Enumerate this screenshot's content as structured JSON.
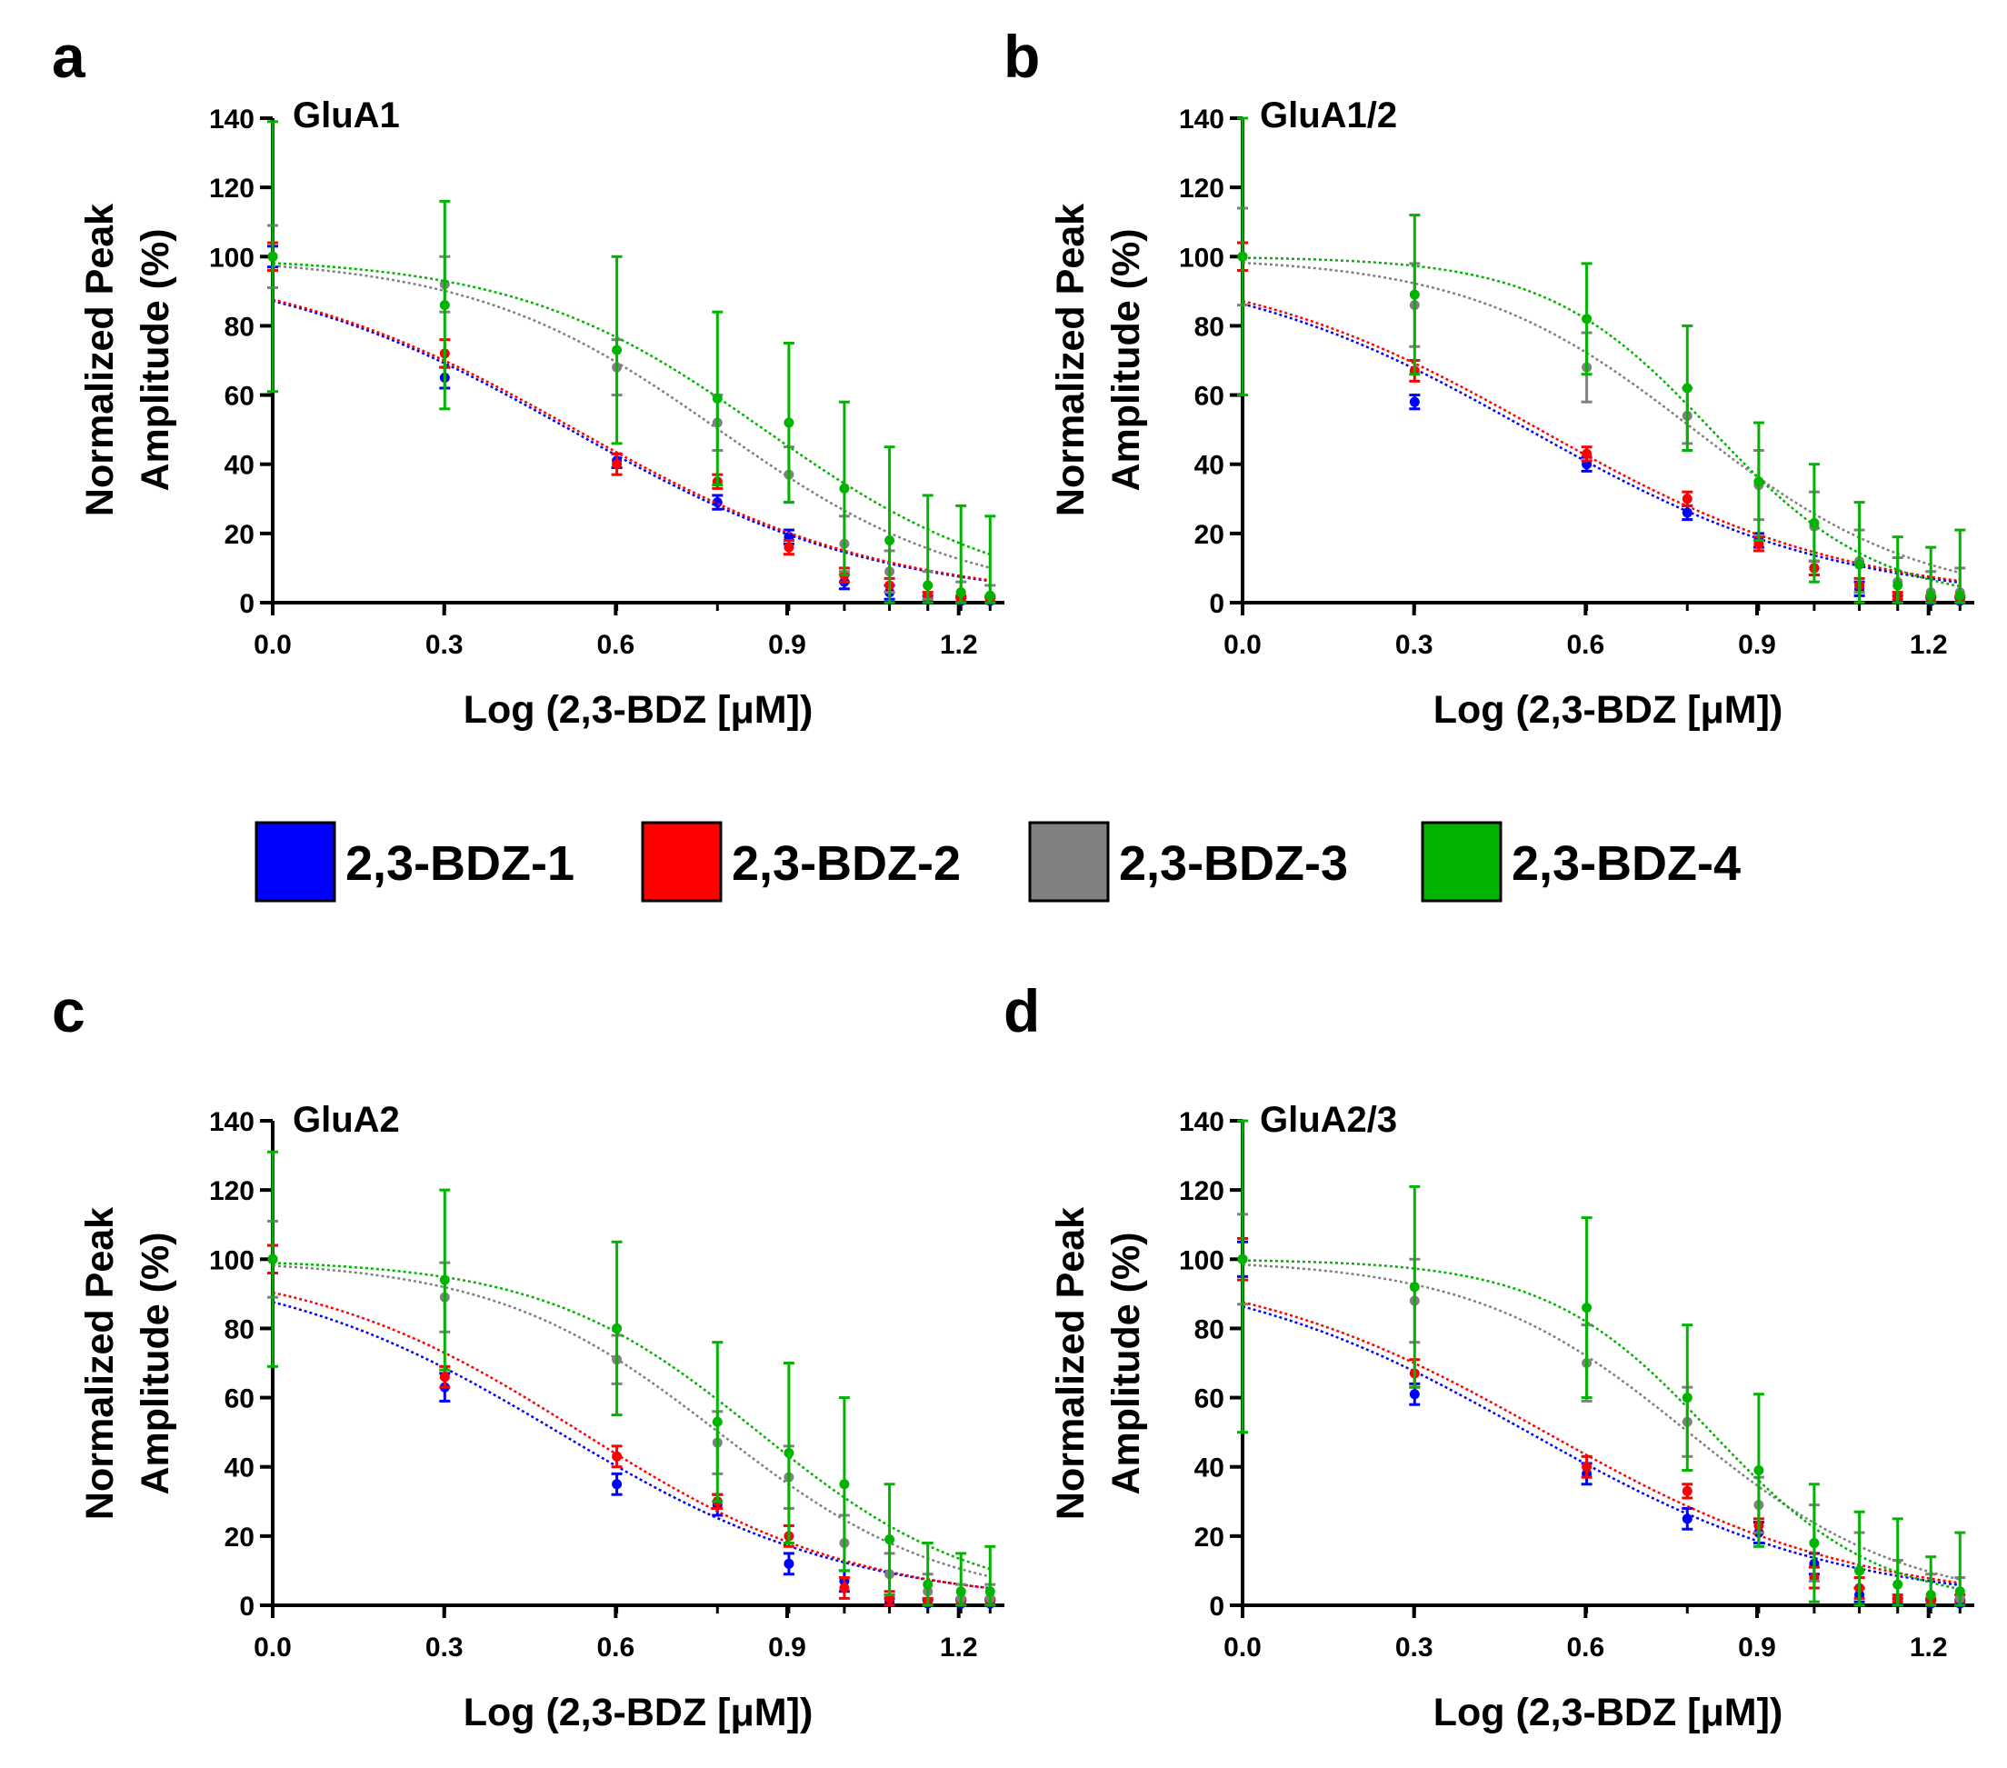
{
  "legend": [
    {
      "name": "2,3-BDZ-1",
      "color": "#0000ff"
    },
    {
      "name": "2,3-BDZ-2",
      "color": "#ff0000"
    },
    {
      "name": "2,3-BDZ-3",
      "color": "#808080"
    },
    {
      "name": "2,3-BDZ-4",
      "color": "#00b400"
    }
  ],
  "chart_data": [
    {
      "type": "scatter",
      "panel": "a",
      "title": "GluA1",
      "xlabel": "Log (2,3-BDZ [μM])",
      "ylabel_lines": [
        "Normalized Peak",
        "Amplitude (%)"
      ],
      "xlim": [
        0,
        1.28
      ],
      "ylim": [
        0,
        140
      ],
      "xticks": [
        0.0,
        0.3,
        0.6,
        0.9,
        1.2
      ],
      "xtick_labels": [
        "0.0",
        "0.3",
        "0.6",
        "0.9",
        "1.2"
      ],
      "yticks": [
        0,
        20,
        40,
        60,
        80,
        100,
        120,
        140
      ],
      "ytick_labels": [
        "0",
        "20",
        "40",
        "60",
        "80",
        "100",
        "120",
        "140"
      ],
      "x": [
        0,
        0.301,
        0.602,
        0.778,
        0.903,
        1.0,
        1.079,
        1.146,
        1.204,
        1.255
      ],
      "series": [
        {
          "name": "2,3-BDZ-1",
          "values": [
            100,
            65,
            41,
            29,
            19,
            6,
            3,
            1,
            0.5,
            0.5
          ],
          "errors": [
            3,
            3,
            2,
            2,
            2,
            2,
            2,
            1,
            1,
            1
          ],
          "fit": {
            "ic50_log": 0.52,
            "hill": -1.6,
            "top": 100,
            "bottom": 0
          }
        },
        {
          "name": "2,3-BDZ-2",
          "values": [
            100,
            72,
            40,
            35,
            16,
            8,
            5,
            2,
            1,
            1
          ],
          "errors": [
            4,
            4,
            3,
            2,
            2,
            2,
            2,
            1,
            1,
            1
          ],
          "fit": {
            "ic50_log": 0.53,
            "hill": -1.6,
            "top": 100,
            "bottom": 0
          }
        },
        {
          "name": "2,3-BDZ-3",
          "values": [
            100,
            92,
            68,
            52,
            37,
            17,
            9,
            5,
            3,
            2
          ],
          "errors": [
            9,
            8,
            8,
            8,
            8,
            8,
            6,
            4,
            3,
            3
          ],
          "fit": {
            "ic50_log": 0.78,
            "hill": -2.0,
            "top": 100,
            "bottom": 0
          }
        },
        {
          "name": "2,3-BDZ-4",
          "values": [
            100,
            86,
            73,
            59,
            52,
            33,
            18,
            5,
            3,
            2
          ],
          "errors": [
            39,
            30,
            27,
            25,
            23,
            25,
            27,
            26,
            25,
            23
          ],
          "fit": {
            "ic50_log": 0.86,
            "hill": -2.0,
            "top": 100,
            "bottom": 0
          }
        }
      ]
    },
    {
      "type": "scatter",
      "panel": "b",
      "title": "GluA1/2",
      "xlabel": "Log (2,3-BDZ [μM])",
      "ylabel_lines": [
        "Normalized Peak",
        "Amplitude (%)"
      ],
      "xlim": [
        0,
        1.28
      ],
      "ylim": [
        0,
        140
      ],
      "xticks": [
        0.0,
        0.3,
        0.6,
        0.9,
        1.2
      ],
      "xtick_labels": [
        "0.0",
        "0.3",
        "0.6",
        "0.9",
        "1.2"
      ],
      "yticks": [
        0,
        20,
        40,
        60,
        80,
        100,
        120,
        140
      ],
      "ytick_labels": [
        "0",
        "20",
        "40",
        "60",
        "80",
        "100",
        "120",
        "140"
      ],
      "x": [
        0,
        0.301,
        0.602,
        0.778,
        0.903,
        1.0,
        1.079,
        1.146,
        1.204,
        1.255
      ],
      "series": [
        {
          "name": "2,3-BDZ-1",
          "values": [
            100,
            58,
            40,
            26,
            18,
            10,
            4,
            1,
            0.5,
            0.5
          ],
          "errors": [
            4,
            2,
            2,
            2,
            2,
            2,
            2,
            1,
            1,
            1
          ],
          "fit": {
            "ic50_log": 0.5,
            "hill": -1.6,
            "top": 100,
            "bottom": 0
          }
        },
        {
          "name": "2,3-BDZ-2",
          "values": [
            100,
            67,
            43,
            30,
            17,
            10,
            5,
            2,
            1,
            1
          ],
          "errors": [
            4,
            3,
            2,
            2,
            2,
            2,
            2,
            1,
            1,
            1
          ],
          "fit": {
            "ic50_log": 0.52,
            "hill": -1.6,
            "top": 100,
            "bottom": 0
          }
        },
        {
          "name": "2,3-BDZ-3",
          "values": [
            100,
            86,
            68,
            54,
            34,
            22,
            12,
            6,
            3,
            3
          ],
          "errors": [
            14,
            12,
            10,
            8,
            10,
            10,
            9,
            7,
            6,
            7
          ],
          "fit": {
            "ic50_log": 0.79,
            "hill": -2.2,
            "top": 100,
            "bottom": 0
          }
        },
        {
          "name": "2,3-BDZ-4",
          "values": [
            100,
            89,
            82,
            62,
            35,
            23,
            11,
            5,
            2,
            2
          ],
          "errors": [
            40,
            23,
            16,
            18,
            17,
            17,
            18,
            14,
            14,
            19
          ],
          "fit": {
            "ic50_log": 0.82,
            "hill": -3.0,
            "top": 100,
            "bottom": 0
          }
        }
      ]
    },
    {
      "type": "scatter",
      "panel": "c",
      "title": "GluA2",
      "xlabel": "Log (2,3-BDZ [μM])",
      "ylabel_lines": [
        "Normalized Peak",
        "Amplitude (%)"
      ],
      "xlim": [
        0,
        1.28
      ],
      "ylim": [
        0,
        140
      ],
      "xticks": [
        0.0,
        0.3,
        0.6,
        0.9,
        1.2
      ],
      "xtick_labels": [
        "0.0",
        "0.3",
        "0.6",
        "0.9",
        "1.2"
      ],
      "yticks": [
        0,
        20,
        40,
        60,
        80,
        100,
        120,
        140
      ],
      "ytick_labels": [
        "0",
        "20",
        "40",
        "60",
        "80",
        "100",
        "120",
        "140"
      ],
      "x": [
        0,
        0.301,
        0.602,
        0.778,
        0.903,
        1.0,
        1.079,
        1.146,
        1.204,
        1.255
      ],
      "series": [
        {
          "name": "2,3-BDZ-1",
          "values": [
            100,
            63,
            35,
            29,
            12,
            7,
            1,
            0.5,
            0.5,
            0.5
          ],
          "errors": [
            4,
            4,
            3,
            3,
            3,
            3,
            1,
            1,
            1,
            1
          ],
          "fit": {
            "ic50_log": 0.5,
            "hill": -1.7,
            "top": 100,
            "bottom": 0
          }
        },
        {
          "name": "2,3-BDZ-2",
          "values": [
            100,
            66,
            43,
            30,
            20,
            5,
            2,
            1,
            1,
            1
          ],
          "errors": [
            4,
            3,
            3,
            2,
            3,
            3,
            2,
            1,
            1,
            1
          ],
          "fit": {
            "ic50_log": 0.54,
            "hill": -1.8,
            "top": 100,
            "bottom": 0
          }
        },
        {
          "name": "2,3-BDZ-3",
          "values": [
            100,
            89,
            71,
            47,
            37,
            18,
            9,
            4,
            2,
            2
          ],
          "errors": [
            11,
            10,
            7,
            9,
            9,
            8,
            6,
            5,
            4,
            4
          ],
          "fit": {
            "ic50_log": 0.78,
            "hill": -2.2,
            "top": 100,
            "bottom": 0
          }
        },
        {
          "name": "2,3-BDZ-4",
          "values": [
            100,
            94,
            80,
            53,
            44,
            35,
            19,
            6,
            4,
            4
          ],
          "errors": [
            31,
            26,
            25,
            23,
            26,
            25,
            16,
            12,
            11,
            13
          ],
          "fit": {
            "ic50_log": 0.85,
            "hill": -2.3,
            "top": 100,
            "bottom": 0
          }
        }
      ]
    },
    {
      "type": "scatter",
      "panel": "d",
      "title": "GluA2/3",
      "xlabel": "Log (2,3-BDZ [μM])",
      "ylabel_lines": [
        "Normalized Peak",
        "Amplitude (%)"
      ],
      "xlim": [
        0,
        1.28
      ],
      "ylim": [
        0,
        140
      ],
      "xticks": [
        0.0,
        0.3,
        0.6,
        0.9,
        1.2
      ],
      "xtick_labels": [
        "0.0",
        "0.3",
        "0.6",
        "0.9",
        "1.2"
      ],
      "yticks": [
        0,
        20,
        40,
        60,
        80,
        100,
        120,
        140
      ],
      "ytick_labels": [
        "0",
        "20",
        "40",
        "60",
        "80",
        "100",
        "120",
        "140"
      ],
      "x": [
        0,
        0.301,
        0.602,
        0.778,
        0.903,
        1.0,
        1.079,
        1.146,
        1.204,
        1.255
      ],
      "series": [
        {
          "name": "2,3-BDZ-1",
          "values": [
            100,
            61,
            38,
            25,
            21,
            12,
            3,
            1,
            0.5,
            0.5
          ],
          "errors": [
            5,
            3,
            3,
            3,
            3,
            3,
            2,
            1,
            1,
            1
          ],
          "fit": {
            "ic50_log": 0.5,
            "hill": -1.6,
            "top": 100,
            "bottom": 0
          }
        },
        {
          "name": "2,3-BDZ-2",
          "values": [
            100,
            67,
            40,
            33,
            23,
            8,
            5,
            2,
            1,
            2
          ],
          "errors": [
            6,
            4,
            3,
            2,
            2,
            3,
            3,
            1,
            1,
            1
          ],
          "fit": {
            "ic50_log": 0.53,
            "hill": -1.6,
            "top": 100,
            "bottom": 0
          }
        },
        {
          "name": "2,3-BDZ-3",
          "values": [
            100,
            88,
            70,
            53,
            29,
            18,
            10,
            6,
            3,
            2
          ],
          "errors": [
            13,
            12,
            11,
            10,
            8,
            11,
            11,
            7,
            6,
            6
          ],
          "fit": {
            "ic50_log": 0.78,
            "hill": -2.3,
            "top": 100,
            "bottom": 0
          }
        },
        {
          "name": "2,3-BDZ-4",
          "values": [
            100,
            92,
            86,
            60,
            39,
            18,
            10,
            6,
            3,
            4
          ],
          "errors": [
            50,
            29,
            26,
            21,
            22,
            17,
            17,
            19,
            11,
            17
          ],
          "fit": {
            "ic50_log": 0.82,
            "hill": -3.0,
            "top": 100,
            "bottom": 0
          }
        }
      ]
    }
  ]
}
